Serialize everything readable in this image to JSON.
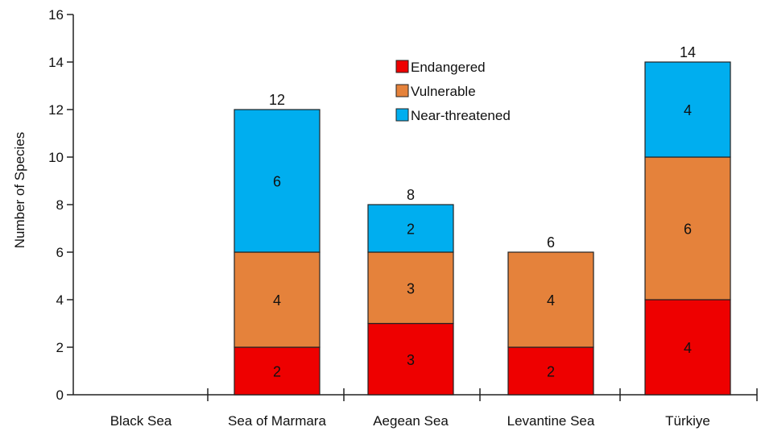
{
  "chart_data": {
    "type": "bar",
    "stacked": true,
    "categories": [
      "Black Sea",
      "Sea of Marmara",
      "Aegean Sea",
      "Levantine Sea",
      "Türkiye"
    ],
    "series": [
      {
        "name": "Endangered",
        "color": "#ee0000",
        "values": [
          0,
          2,
          3,
          2,
          4
        ]
      },
      {
        "name": "Vulnerable",
        "color": "#e5823b",
        "values": [
          0,
          4,
          3,
          4,
          6
        ]
      },
      {
        "name": "Near-threatened",
        "color": "#00aeef",
        "values": [
          0,
          6,
          2,
          0,
          4
        ]
      }
    ],
    "totals": [
      null,
      12,
      8,
      6,
      14
    ],
    "ylabel": "Number of Species",
    "xlabel": "",
    "ylim": [
      0,
      16
    ],
    "yticks": [
      0,
      2,
      4,
      6,
      8,
      10,
      12,
      14,
      16
    ],
    "legend_position": "top-center",
    "grid": false
  }
}
